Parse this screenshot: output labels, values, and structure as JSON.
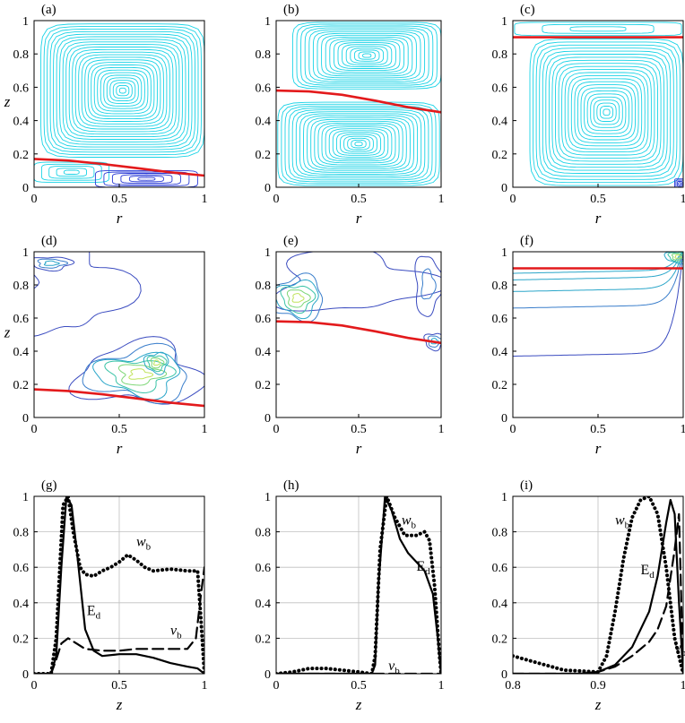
{
  "chart_data": [
    {
      "panel": "(a)",
      "type": "contour",
      "xlabel": "r",
      "ylabel": "z",
      "xlim": [
        0,
        1
      ],
      "ylim": [
        0,
        1
      ],
      "xticks": [
        "0",
        "0.5",
        "1"
      ],
      "yticks": [
        "0",
        "0.2",
        "0.4",
        "0.6",
        "0.8",
        "1"
      ],
      "interface": {
        "r": [
          0,
          0.2,
          0.4,
          0.6,
          0.8,
          1.0
        ],
        "z": [
          0.17,
          0.16,
          0.14,
          0.115,
          0.09,
          0.07
        ]
      }
    },
    {
      "panel": "(b)",
      "type": "contour",
      "xlabel": "r",
      "ylabel": "",
      "xlim": [
        0,
        1
      ],
      "ylim": [
        0,
        1
      ],
      "xticks": [
        "0",
        "0.5",
        "1"
      ],
      "yticks": [
        "0",
        "0.2",
        "0.4",
        "0.6",
        "0.8",
        "1"
      ],
      "interface": {
        "r": [
          0,
          0.2,
          0.4,
          0.6,
          0.8,
          1.0
        ],
        "z": [
          0.58,
          0.575,
          0.555,
          0.52,
          0.48,
          0.45
        ]
      }
    },
    {
      "panel": "(c)",
      "type": "contour",
      "xlabel": "r",
      "ylabel": "",
      "xlim": [
        0,
        1
      ],
      "ylim": [
        0,
        1
      ],
      "xticks": [
        "0",
        "0.5",
        "1"
      ],
      "yticks": [
        "0",
        "0.2",
        "0.4",
        "0.6",
        "0.8",
        "1"
      ],
      "interface": {
        "r": [
          0,
          0.5,
          1.0
        ],
        "z": [
          0.9,
          0.9,
          0.9
        ]
      }
    },
    {
      "panel": "(d)",
      "type": "contour",
      "xlabel": "r",
      "ylabel": "z",
      "xlim": [
        0,
        1
      ],
      "ylim": [
        0,
        1
      ],
      "xticks": [
        "0",
        "0.5",
        "1"
      ],
      "yticks": [
        "0",
        "0.2",
        "0.4",
        "0.6",
        "0.8",
        "1"
      ],
      "interface": {
        "r": [
          0,
          0.2,
          0.4,
          0.6,
          0.8,
          1.0
        ],
        "z": [
          0.17,
          0.16,
          0.14,
          0.115,
          0.09,
          0.07
        ]
      }
    },
    {
      "panel": "(e)",
      "type": "contour",
      "xlabel": "r",
      "ylabel": "",
      "xlim": [
        0,
        1
      ],
      "ylim": [
        0,
        1
      ],
      "xticks": [
        "0",
        "0.5",
        "1"
      ],
      "yticks": [
        "0",
        "0.2",
        "0.4",
        "0.6",
        "0.8",
        "1"
      ],
      "interface": {
        "r": [
          0,
          0.2,
          0.4,
          0.6,
          0.8,
          1.0
        ],
        "z": [
          0.58,
          0.575,
          0.555,
          0.52,
          0.48,
          0.45
        ]
      }
    },
    {
      "panel": "(f)",
      "type": "contour",
      "xlabel": "r",
      "ylabel": "",
      "xlim": [
        0,
        1
      ],
      "ylim": [
        0,
        1
      ],
      "xticks": [
        "0",
        "0.5",
        "1"
      ],
      "yticks": [
        "0",
        "0.2",
        "0.4",
        "0.6",
        "0.8",
        "1"
      ],
      "interface": {
        "r": [
          0,
          0.5,
          1.0
        ],
        "z": [
          0.9,
          0.9,
          0.9
        ]
      }
    },
    {
      "panel": "(g)",
      "type": "line",
      "xlabel": "z",
      "ylabel": "",
      "xlim": [
        0,
        1
      ],
      "ylim": [
        0,
        1
      ],
      "xticks": [
        "0",
        "0.5",
        "1"
      ],
      "yticks": [
        "0",
        "0.2",
        "0.4",
        "0.6",
        "0.8",
        "1"
      ],
      "series": [
        {
          "name": "Ed",
          "style": "solid",
          "x": [
            0,
            0.1,
            0.13,
            0.16,
            0.19,
            0.22,
            0.25,
            0.3,
            0.35,
            0.4,
            0.5,
            0.6,
            0.7,
            0.8,
            0.9,
            0.96,
            1.0
          ],
          "y": [
            0,
            0,
            0.1,
            0.6,
            1.0,
            0.95,
            0.7,
            0.25,
            0.13,
            0.1,
            0.11,
            0.11,
            0.09,
            0.06,
            0.04,
            0.03,
            0.0
          ]
        },
        {
          "name": "wb",
          "style": "dotted",
          "x": [
            0,
            0.1,
            0.13,
            0.17,
            0.2,
            0.23,
            0.27,
            0.3,
            0.35,
            0.4,
            0.45,
            0.5,
            0.55,
            0.6,
            0.65,
            0.7,
            0.8,
            0.9,
            0.96,
            0.98,
            1.0
          ],
          "y": [
            0,
            0,
            0.2,
            0.95,
            1.0,
            0.8,
            0.6,
            0.56,
            0.55,
            0.58,
            0.6,
            0.63,
            0.67,
            0.64,
            0.6,
            0.58,
            0.59,
            0.58,
            0.58,
            0.3,
            0.0
          ]
        },
        {
          "name": "vb",
          "style": "dashed",
          "x": [
            0,
            0.1,
            0.13,
            0.16,
            0.2,
            0.25,
            0.3,
            0.4,
            0.5,
            0.6,
            0.7,
            0.8,
            0.9,
            0.95,
            0.98,
            1.0
          ],
          "y": [
            0,
            0,
            0.08,
            0.17,
            0.2,
            0.17,
            0.14,
            0.13,
            0.13,
            0.14,
            0.14,
            0.14,
            0.14,
            0.2,
            0.45,
            0.6
          ]
        }
      ]
    },
    {
      "panel": "(h)",
      "type": "line",
      "xlabel": "z",
      "ylabel": "",
      "xlim": [
        0,
        1
      ],
      "ylim": [
        0,
        1
      ],
      "xticks": [
        "0",
        "0.5",
        "1"
      ],
      "yticks": [
        "0",
        "0.2",
        "0.4",
        "0.6",
        "0.8",
        "1"
      ],
      "series": [
        {
          "name": "Ed",
          "style": "solid",
          "x": [
            0,
            0.58,
            0.6,
            0.62,
            0.66,
            0.7,
            0.75,
            0.8,
            0.85,
            0.9,
            0.95,
            0.98,
            1.0
          ],
          "y": [
            0,
            0,
            0.05,
            0.5,
            1.0,
            0.92,
            0.76,
            0.68,
            0.63,
            0.58,
            0.45,
            0.2,
            0.0
          ]
        },
        {
          "name": "wb",
          "style": "dotted",
          "x": [
            0,
            0.1,
            0.2,
            0.3,
            0.4,
            0.5,
            0.58,
            0.6,
            0.63,
            0.67,
            0.72,
            0.78,
            0.85,
            0.9,
            0.93,
            0.96,
            0.99,
            1.0
          ],
          "y": [
            0,
            0.01,
            0.03,
            0.03,
            0.02,
            0.01,
            0.0,
            0.1,
            0.7,
            1.0,
            0.88,
            0.78,
            0.78,
            0.8,
            0.75,
            0.5,
            0.1,
            0.0
          ]
        },
        {
          "name": "vb",
          "style": "dashed",
          "x": [
            0,
            0.5,
            0.58,
            0.7,
            0.8,
            0.9,
            0.97,
            1.0
          ],
          "y": [
            0,
            0,
            0.0,
            0.0,
            0.0,
            0.0,
            0.0,
            0.0
          ]
        }
      ]
    },
    {
      "panel": "(i)",
      "type": "line",
      "xlabel": "z",
      "ylabel": "",
      "xlim": [
        0.8,
        1
      ],
      "ylim": [
        0,
        1
      ],
      "xticks": [
        "0.8",
        "0.9",
        "1"
      ],
      "yticks": [
        "0",
        "0.2",
        "0.4",
        "0.6",
        "0.8",
        "1"
      ],
      "series": [
        {
          "name": "Ed",
          "style": "solid",
          "x": [
            0.8,
            0.88,
            0.9,
            0.92,
            0.94,
            0.96,
            0.97,
            0.98,
            0.985,
            0.99,
            0.995,
            1.0
          ],
          "y": [
            0,
            0,
            0.01,
            0.05,
            0.15,
            0.35,
            0.55,
            0.85,
            0.98,
            0.9,
            0.4,
            0.0
          ]
        },
        {
          "name": "wb",
          "style": "dotted",
          "x": [
            0.8,
            0.83,
            0.86,
            0.9,
            0.91,
            0.92,
            0.93,
            0.94,
            0.95,
            0.96,
            0.97,
            0.98,
            0.99,
            1.0
          ],
          "y": [
            0.1,
            0.06,
            0.02,
            0.01,
            0.1,
            0.35,
            0.65,
            0.88,
            0.98,
            1.0,
            0.9,
            0.6,
            0.2,
            0.0
          ]
        },
        {
          "name": "vb",
          "style": "dashed",
          "x": [
            0.8,
            0.88,
            0.9,
            0.92,
            0.94,
            0.96,
            0.97,
            0.98,
            0.99,
            0.995,
            1.0
          ],
          "y": [
            0,
            0,
            0.01,
            0.04,
            0.1,
            0.18,
            0.25,
            0.38,
            0.7,
            0.9,
            0.0
          ]
        }
      ]
    }
  ]
}
